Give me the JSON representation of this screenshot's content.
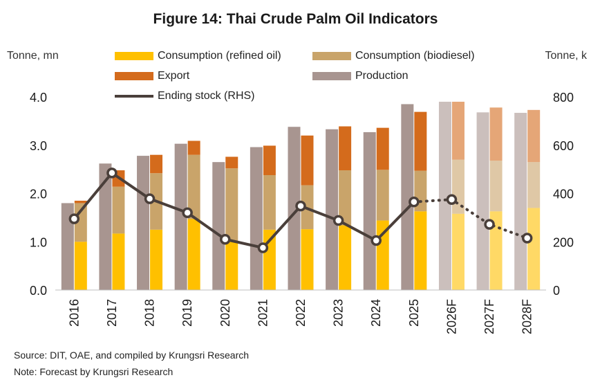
{
  "title": "Figure 14: Thai Crude Palm Oil Indicators",
  "unit_left": "Tonne, mn",
  "unit_right": "Tonne, k",
  "source": "Source: DIT, OAE, and compiled by Krungsri Research",
  "note": "Note: Forecast by Krungsri Research",
  "legend": {
    "consumption_refined": "Consumption (refined oil)",
    "consumption_biodiesel": "Consumption (biodiesel)",
    "export": "Export",
    "production": "Production",
    "ending_stock": "Ending stock (RHS)"
  },
  "colors": {
    "production": "#a89590",
    "consumption_refined": "#ffc000",
    "consumption_biodiesel": "#c9a46a",
    "export": "#d46b1c",
    "ending_stock": "#4a3f3a"
  },
  "chart_data": {
    "type": "bar",
    "categories": [
      "2016",
      "2017",
      "2018",
      "2019",
      "2020",
      "2021",
      "2022",
      "2023",
      "2024",
      "2025",
      "2026F",
      "2027F",
      "2028F"
    ],
    "forecast_from_index": 10,
    "series": [
      {
        "name": "Production",
        "axis": "left",
        "values": [
          1.8,
          2.62,
          2.78,
          3.03,
          2.65,
          2.96,
          3.38,
          3.33,
          3.27,
          3.85,
          3.9,
          3.68,
          3.67
        ]
      },
      {
        "name": "Consumption (refined oil)",
        "axis": "left",
        "stack": "use",
        "values": [
          1.0,
          1.17,
          1.25,
          1.47,
          1.01,
          1.25,
          1.26,
          1.34,
          1.44,
          1.63,
          1.58,
          1.63,
          1.7
        ]
      },
      {
        "name": "Consumption (biodiesel)",
        "axis": "left",
        "stack": "use",
        "values": [
          0.8,
          0.97,
          1.17,
          1.33,
          1.51,
          1.13,
          0.91,
          1.14,
          1.05,
          0.84,
          1.12,
          1.05,
          0.95
        ]
      },
      {
        "name": "Export",
        "axis": "left",
        "stack": "use",
        "values": [
          0.05,
          0.34,
          0.38,
          0.29,
          0.24,
          0.61,
          1.03,
          0.91,
          0.87,
          1.22,
          1.2,
          1.1,
          1.08
        ]
      },
      {
        "name": "Ending stock (RHS)",
        "axis": "right",
        "type": "line",
        "values": [
          295,
          485,
          378,
          320,
          210,
          175,
          348,
          288,
          205,
          365,
          375,
          272,
          215
        ]
      }
    ],
    "y_left": {
      "min": 0,
      "max": 4.0,
      "ticks": [
        "0.0",
        "1.0",
        "2.0",
        "3.0",
        "4.0"
      ]
    },
    "y_right": {
      "min": 0,
      "max": 800,
      "ticks": [
        "0",
        "200",
        "400",
        "600",
        "800"
      ]
    },
    "grid": false
  }
}
